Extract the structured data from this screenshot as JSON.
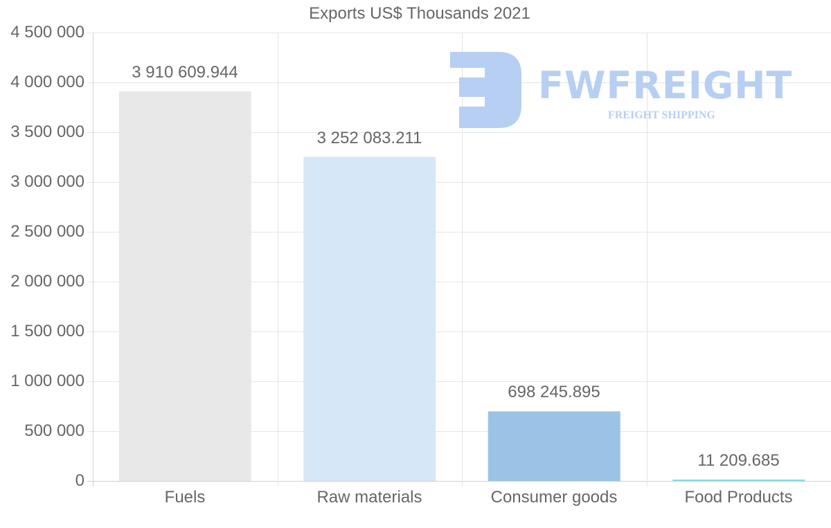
{
  "chart_data": {
    "type": "bar",
    "title": "Exports US$ Thousands 2021",
    "xlabel": "",
    "ylabel": "",
    "categories": [
      "Fuels",
      "Raw materials",
      "Consumer goods",
      "Food Products"
    ],
    "values": [
      3910609.944,
      3252083.211,
      698245.895,
      11209.685
    ],
    "value_labels": [
      "3 910 609.944",
      "3 252 083.211",
      "698 245.895",
      "11 209.685"
    ],
    "colors": [
      "#e8e8e8",
      "#d6e7f8",
      "#9bc3e6",
      "#7fdcdc"
    ],
    "ylim": [
      0,
      4500000
    ],
    "yticks": [
      0,
      500000,
      1000000,
      1500000,
      2000000,
      2500000,
      3000000,
      3500000,
      4000000,
      4500000
    ],
    "ytick_labels": [
      "0",
      "500 000",
      "1 000 000",
      "1 500 000",
      "2 000 000",
      "2 500 000",
      "3 000 000",
      "3 500 000",
      "4 000 000",
      "4 500 000"
    ],
    "grid": true,
    "legend": null
  },
  "watermark": {
    "brand": "FWFREIGHT",
    "tagline": "FREIGHT SHIPPING",
    "color": "#b3cdf3"
  }
}
